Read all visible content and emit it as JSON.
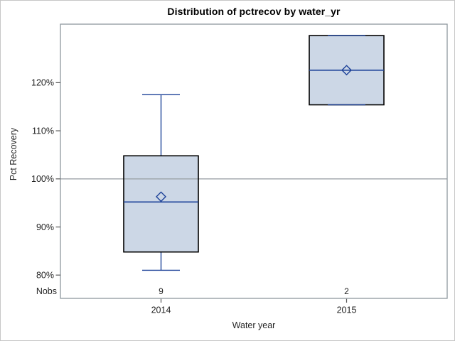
{
  "title": "Distribution of pctrecov by water_yr",
  "y_axis": {
    "label": "Pct Recovery",
    "tick_labels": [
      "80%",
      "90%",
      "100%",
      "110%",
      "120%"
    ]
  },
  "x_axis": {
    "label": "Water year"
  },
  "nobs_label": "Nobs",
  "colors": {
    "box_fill": "#ccd7e6",
    "box_border": "#000000",
    "stat_line": "#1d4299",
    "frame": "#8f979e",
    "reference_line": "#9da3a8",
    "tick": "#555555",
    "text": "#222222",
    "figure_border": "#c6c6c6"
  },
  "chart_data": {
    "type": "boxplot",
    "title": "Distribution of pctrecov by water_yr",
    "xlabel": "Water year",
    "ylabel": "Pct Recovery",
    "ylim": [
      76,
      132
    ],
    "yticks": [
      80,
      90,
      100,
      110,
      120
    ],
    "ytick_format": "percent",
    "reference_line_y": 100,
    "grid": false,
    "legend": false,
    "categories": [
      "2014",
      "2015"
    ],
    "groups": [
      {
        "category": "2014",
        "nobs": 9,
        "whisker_low": 81.0,
        "q1": 84.8,
        "median": 95.2,
        "mean": 96.3,
        "q3": 104.8,
        "whisker_high": 117.5
      },
      {
        "category": "2015",
        "nobs": 2,
        "whisker_low": 115.4,
        "q1": 115.4,
        "median": 122.6,
        "mean": 122.6,
        "q3": 129.8,
        "whisker_high": 129.8
      }
    ]
  }
}
